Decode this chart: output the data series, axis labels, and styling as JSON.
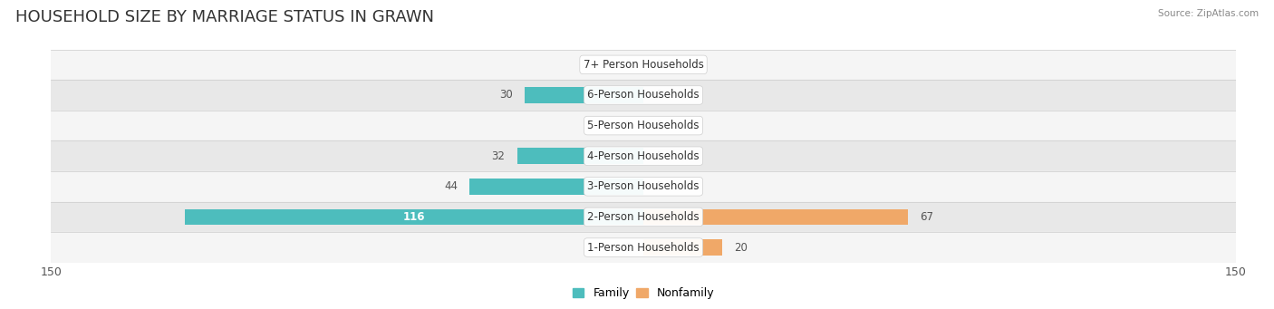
{
  "title": "HOUSEHOLD SIZE BY MARRIAGE STATUS IN GRAWN",
  "source": "Source: ZipAtlas.com",
  "categories": [
    "7+ Person Households",
    "6-Person Households",
    "5-Person Households",
    "4-Person Households",
    "3-Person Households",
    "2-Person Households",
    "1-Person Households"
  ],
  "family_values": [
    0,
    30,
    0,
    32,
    44,
    116,
    0
  ],
  "nonfamily_values": [
    0,
    0,
    0,
    0,
    0,
    67,
    20
  ],
  "family_color": "#4dbdbd",
  "nonfamily_color": "#f0a868",
  "axis_limit": 150,
  "bar_height": 0.52,
  "row_bg_light": "#f5f5f5",
  "row_bg_dark": "#e8e8e8",
  "label_fontsize": 8.5,
  "title_fontsize": 13,
  "value_label_color_inside": "#ffffff",
  "value_label_color_outside": "#555555"
}
